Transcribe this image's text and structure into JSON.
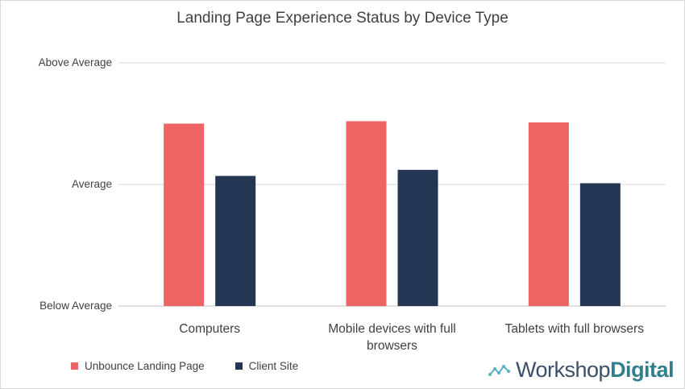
{
  "chart_data": {
    "type": "bar",
    "title": "Landing Page Experience Status by Device Type",
    "y_levels": [
      "Below Average",
      "Average",
      "Above Average"
    ],
    "ylim": [
      0,
      2
    ],
    "categories": [
      [
        "Computers"
      ],
      [
        "Mobile devices with full",
        "browsers"
      ],
      [
        "Tablets with full browsers"
      ]
    ],
    "series": [
      {
        "name": "Unbounce Landing Page",
        "color": "#ee6363",
        "values": [
          1.5,
          1.52,
          1.51
        ]
      },
      {
        "name": "Client Site",
        "color": "#243654",
        "values": [
          1.07,
          1.12,
          1.01
        ]
      }
    ],
    "grid": true,
    "legend_position": "bottom-left"
  },
  "branding": {
    "logo_light": "Workshop",
    "logo_bold": "Digital",
    "logo_icon": "wave-line-icon"
  }
}
